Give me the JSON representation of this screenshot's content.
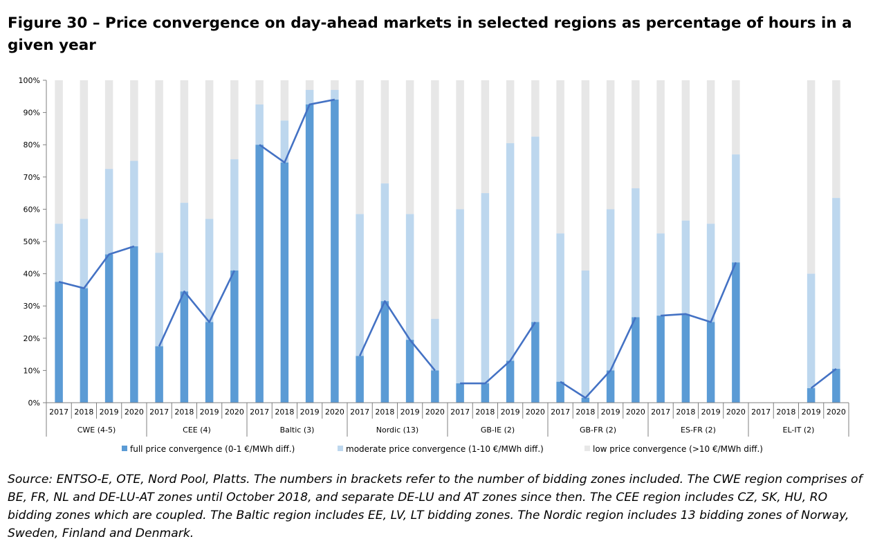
{
  "title": "Figure 30 – Price convergence on day-ahead markets in selected regions as percentage of hours in a given year",
  "source_note": "Source: ENTSO-E, OTE, Nord Pool, Platts. The numbers in brackets refer to the number of bidding zones included. The CWE region comprises of BE, FR, NL and DE-LU-AT zones until October 2018, and separate DE-LU and AT zones since then. The CEE region includes CZ, SK, HU, RO bidding zones which are coupled. The Baltic region includes EE, LV, LT bidding zones. The Nordic region includes 13 bidding zones of Norway, Sweden, Finland and Denmark.",
  "colors": {
    "full": "#5b9bd5",
    "moderate": "#bdd7ee",
    "low": "#e7e7e7",
    "line": "#4472c4",
    "axis": "#7f7f7f"
  },
  "chart_data": {
    "type": "bar",
    "stacked": true,
    "y_unit": "%",
    "ylim": [
      0,
      100
    ],
    "yticks": [
      0,
      10,
      20,
      30,
      40,
      50,
      60,
      70,
      80,
      90,
      100
    ],
    "ytick_labels": [
      "0%",
      "10%",
      "20%",
      "30%",
      "40%",
      "50%",
      "60%",
      "70%",
      "80%",
      "90%",
      "100%"
    ],
    "years": [
      "2017",
      "2018",
      "2019",
      "2020"
    ],
    "legend": {
      "placement": "bottom",
      "items": [
        {
          "key": "full",
          "label": "full price convergence (0-1 €/MWh diff.)"
        },
        {
          "key": "moderate",
          "label": "moderate price convergence (1-10 €/MWh diff.)"
        },
        {
          "key": "low",
          "label": "low price convergence (>10 €/MWh diff.)"
        }
      ]
    },
    "groups": [
      {
        "name": "CWE (4-5)",
        "full": [
          37.5,
          35.5,
          46,
          48.5
        ],
        "moderate": [
          18,
          21.5,
          26.5,
          26.5
        ]
      },
      {
        "name": "CEE (4)",
        "full": [
          17.5,
          34.5,
          25,
          41
        ],
        "moderate": [
          29,
          27.5,
          32,
          34.5
        ]
      },
      {
        "name": "Baltic (3)",
        "full": [
          80,
          74.5,
          92.5,
          94
        ],
        "moderate": [
          12.5,
          13,
          4.5,
          3
        ]
      },
      {
        "name": "Nordic (13)",
        "full": [
          14.5,
          31.5,
          19.5,
          10
        ],
        "moderate": [
          44,
          36.5,
          39,
          16
        ]
      },
      {
        "name": "GB-IE (2)",
        "full": [
          6,
          6,
          13,
          25
        ],
        "moderate": [
          54,
          59,
          67.5,
          57.5
        ]
      },
      {
        "name": "GB-FR (2)",
        "full": [
          6.5,
          1.5,
          10,
          26.5
        ],
        "moderate": [
          46,
          39.5,
          50,
          40
        ]
      },
      {
        "name": "ES-FR (2)",
        "full": [
          27,
          27.5,
          25,
          43.5
        ],
        "moderate": [
          25.5,
          29,
          30.5,
          33.5
        ]
      },
      {
        "name": "EL-IT (2)",
        "full": [
          null,
          null,
          4.5,
          10.5
        ],
        "moderate": [
          null,
          null,
          35.5,
          53
        ]
      }
    ]
  }
}
